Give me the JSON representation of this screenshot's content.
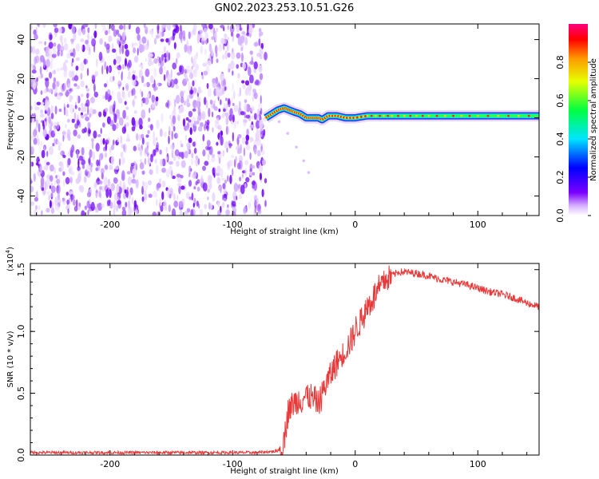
{
  "title": "GN02.2023.253.10.51.G26",
  "chart_data": [
    {
      "type": "heatmap",
      "xlabel": "Height of straight line (km)",
      "ylabel": "Frequency (Hz)",
      "xlim": [
        -265,
        150
      ],
      "ylim": [
        -50,
        48
      ],
      "xticks": [
        -200,
        -100,
        0,
        100
      ],
      "xtick_labels": [
        "-200",
        "-100",
        "0",
        "100"
      ],
      "yticks": [
        -40,
        -20,
        0,
        20,
        40
      ],
      "ytick_labels": [
        "-40",
        "-20",
        "0",
        "20",
        "40"
      ],
      "noise_region_x": [
        -265,
        -73
      ],
      "trace": {
        "x": [
          -73,
          -68,
          -63,
          -58,
          -54,
          -50,
          -45,
          -40,
          -35,
          -30,
          -27,
          -22,
          -15,
          -8,
          0,
          10,
          30,
          60,
          100,
          150
        ],
        "y": [
          0,
          2,
          4,
          5,
          4,
          3,
          2,
          0,
          0,
          0,
          -1,
          1,
          1,
          0,
          0,
          1,
          1,
          1,
          1,
          1
        ]
      },
      "faint_branch": {
        "x": [
          -62,
          -55,
          -48,
          -42,
          -38
        ],
        "y": [
          -2,
          -8,
          -15,
          -22,
          -28
        ]
      },
      "colorbar": {
        "label": "Normalized spectral amplitude",
        "range": [
          0,
          1
        ],
        "ticks": [
          0.0,
          0.2,
          0.4,
          0.6,
          0.8
        ],
        "tick_labels": [
          "0.0",
          "0.2",
          "0.4",
          "0.6",
          "0.8"
        ],
        "colormap": "rainbow"
      }
    },
    {
      "type": "line",
      "xlabel": "Height of straight line (km)",
      "ylabel": "SNR (10 * v/v)",
      "multiplier_label": "(x10",
      "multiplier_exp": "4",
      "multiplier_close": ")",
      "xlim": [
        -265,
        150
      ],
      "ylim": [
        0,
        1.55
      ],
      "xticks": [
        -200,
        -100,
        0,
        100
      ],
      "xtick_labels": [
        "-200",
        "-100",
        "0",
        "100"
      ],
      "yticks": [
        0,
        0.5,
        1.0,
        1.5
      ],
      "ytick_labels": [
        "0.0",
        "0.5",
        "1.0",
        "1.5"
      ],
      "color": "#e83a3a",
      "series": [
        {
          "x": [
            -265,
            -150,
            -80,
            -65,
            -60,
            -57,
            -55,
            -50,
            -45,
            -40,
            -35,
            -30,
            -25,
            -20,
            -15,
            -10,
            -5,
            0,
            5,
            10,
            15,
            20,
            25,
            30,
            35,
            40,
            50,
            60,
            70,
            80,
            90,
            100,
            110,
            120,
            130,
            140,
            150
          ],
          "values": [
            0.02,
            0.02,
            0.02,
            0.03,
            0.05,
            0.2,
            0.35,
            0.42,
            0.45,
            0.48,
            0.45,
            0.42,
            0.55,
            0.65,
            0.75,
            0.82,
            0.9,
            1.0,
            1.1,
            1.2,
            1.28,
            1.35,
            1.42,
            1.45,
            1.48,
            1.48,
            1.47,
            1.45,
            1.42,
            1.4,
            1.38,
            1.35,
            1.32,
            1.3,
            1.27,
            1.23,
            1.2
          ]
        }
      ]
    }
  ]
}
